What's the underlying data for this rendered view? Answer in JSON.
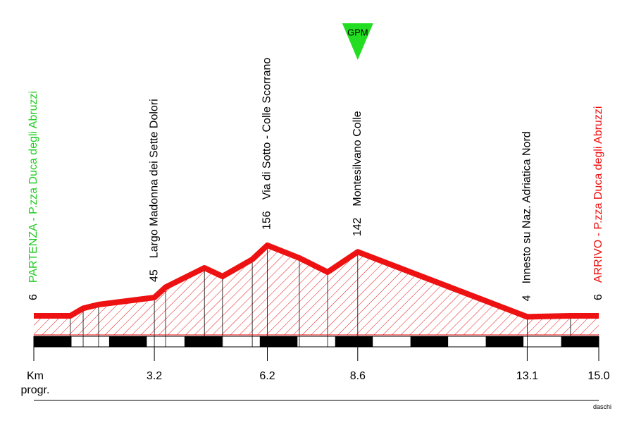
{
  "chart_data": {
    "type": "elevation_profile",
    "x": [
      0,
      0.97,
      1.31,
      1.72,
      3.2,
      3.5,
      4.53,
      5.01,
      5.8,
      6.2,
      7.05,
      7.8,
      8.6,
      13.1,
      14.25,
      15
    ],
    "values": [
      6,
      6,
      22,
      30,
      45,
      67,
      108,
      90,
      126,
      156,
      129,
      99,
      142,
      4,
      6,
      6
    ],
    "color": "#ee1111",
    "xlim": [
      0,
      15
    ],
    "xticks": [
      3.2,
      6.2,
      8.6,
      13.1,
      {
        "value": 15,
        "label": "15.0"
      }
    ],
    "x_axis_label": "Km progr.",
    "waypoints": [
      {
        "name": "PARTENZA - P.zza Duca degli Abruzzi",
        "km": 0,
        "altitude": 6,
        "color": "#22cc22"
      },
      {
        "name": "Largo Madonna dei Sette Dolori",
        "km": 3.2,
        "altitude": 45,
        "color": "#000000"
      },
      {
        "name": "Via di Sotto - Colle Scorrano",
        "km": 6.2,
        "altitude": 156,
        "color": "#000000"
      },
      {
        "name": "Montesilvano Colle",
        "km": 8.6,
        "altitude": 142,
        "color": "#000000",
        "climb": "GPM"
      },
      {
        "name": "Innesto su Naz. Adriatica Nord",
        "km": 13.1,
        "altitude": 4,
        "color": "#000000"
      },
      {
        "name": "ARRIVO - P.zza Duca degli Abruzzi",
        "km": 15,
        "altitude": 6,
        "color": "#ee1111"
      }
    ],
    "credit": "daschi"
  }
}
